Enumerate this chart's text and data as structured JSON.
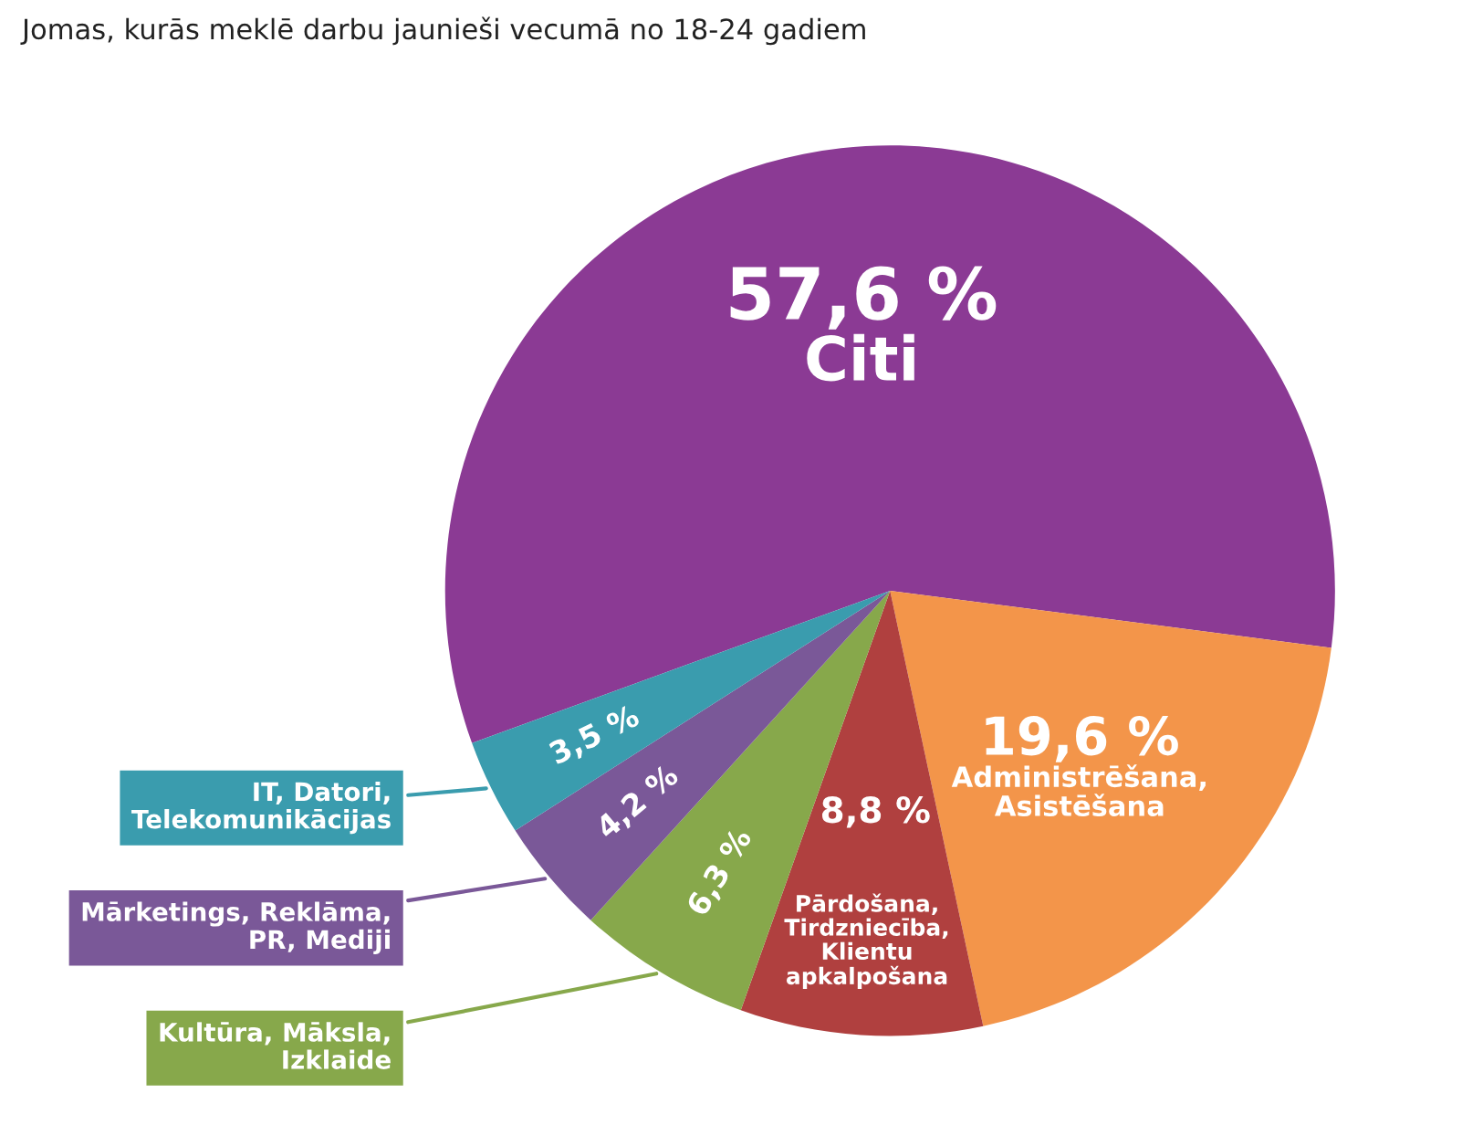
{
  "chart_data": {
    "type": "pie",
    "title": "Jomas, kurās meklē darbu jaunieši vecumā no 18-24 gadiem",
    "categories": [
      "Citi",
      "Administrēšana, Asistēšana",
      "Pārdošana, Tirdzniecība, Klientu apkalpošana",
      "Kultūra, Māksla, Izklaide",
      "Mārketings, Reklāma, PR, Mediji",
      "IT, Datori, Telekomunikācijas"
    ],
    "values": [
      57.6,
      19.6,
      8.8,
      6.3,
      4.2,
      3.5
    ],
    "value_labels": [
      "57,6 %",
      "19,6 %",
      "8,8 %",
      "6,3 %",
      "4,2 %",
      "3,5 %"
    ],
    "colors": [
      "#8b3a94",
      "#f3954a",
      "#b0403f",
      "#87a84b",
      "#7a5898",
      "#3a9cae"
    ]
  }
}
